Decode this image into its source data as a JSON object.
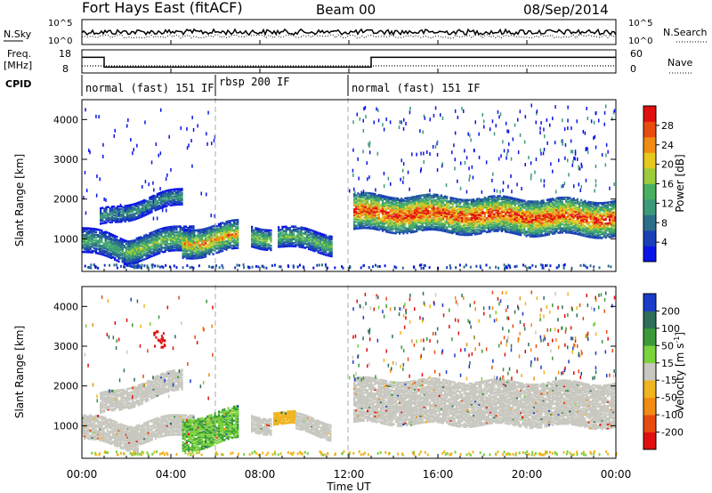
{
  "header": {
    "station": "Fort Hays East (fitACF)",
    "beam": "Beam 00",
    "date": "08/Sep/2014"
  },
  "top_panels": {
    "nsky_label": "N.Sky",
    "nsky_ticks": [
      "10^5",
      "10^0"
    ],
    "nsearch_label": "N.Search",
    "nsearch_ticks": [
      "10^5",
      "10^0"
    ],
    "freq_label_1": "Freq.",
    "freq_label_2": "[MHz]",
    "freq_ticks": [
      "18",
      "8"
    ],
    "nave_label": "Nave",
    "nave_ticks": [
      "60",
      "0"
    ],
    "cpid_label": "CPID",
    "cpid_segments": [
      {
        "label": "normal (fast) 151 IF",
        "start_hr": 0,
        "end_hr": 6
      },
      {
        "label": "rbsp 200 IF",
        "start_hr": 6,
        "end_hr": 12
      },
      {
        "label": "normal (fast) 151 IF",
        "start_hr": 12,
        "end_hr": 24
      }
    ],
    "freq_steps": [
      {
        "start_hr": 0,
        "end_hr": 1.0,
        "mhz": 16
      },
      {
        "start_hr": 1.0,
        "end_hr": 13.0,
        "mhz": 11
      },
      {
        "start_hr": 13.0,
        "end_hr": 24,
        "mhz": 16
      }
    ]
  },
  "power_panel": {
    "ylabel": "Slant Range [km]",
    "yticks": [
      "4000",
      "3000",
      "2000",
      "1000"
    ],
    "ylim": [
      180,
      4500
    ],
    "colorbar_label": "Power [dB]",
    "colorbar_ticks": [
      "28",
      "24",
      "20",
      "16",
      "12",
      "8",
      "4"
    ],
    "colors": [
      "#0a14e6",
      "#1a40b8",
      "#2b6e8a",
      "#3c9a7a",
      "#48b060",
      "#9ccc3c",
      "#e6c81e",
      "#f08c14",
      "#e84a10",
      "#e01010"
    ]
  },
  "velocity_panel": {
    "ylabel": "Slant Range [km]",
    "yticks": [
      "4000",
      "3000",
      "2000",
      "1000"
    ],
    "ylim": [
      180,
      4500
    ],
    "colorbar_label": "Velocity [m s^-1]",
    "colorbar_ticks": [
      "200",
      "100",
      "50",
      "15",
      "-15",
      "-50",
      "-100",
      "-200"
    ],
    "colors": [
      "#1a3cc8",
      "#2e6e5a",
      "#3a9a3a",
      "#7ad23c",
      "#c8c8c0",
      "#f0b41e",
      "#f08c14",
      "#e84a10",
      "#e01010"
    ]
  },
  "xaxis": {
    "xlabel": "Time UT",
    "ticks": [
      "00:00",
      "04:00",
      "08:00",
      "12:00",
      "16:00",
      "20:00",
      "00:00"
    ]
  },
  "chart_data": [
    {
      "type": "heatmap",
      "title": "Power [dB]",
      "xlabel": "Time UT",
      "ylabel": "Slant Range [km]",
      "xlim_hr": [
        0,
        24
      ],
      "ylim": [
        180,
        4500
      ],
      "value_range": [
        0,
        30
      ],
      "bands": [
        {
          "t0": 0.0,
          "t1": 2.5,
          "r0_start": 1000,
          "r0_end": 650,
          "width": 300,
          "peak_db": 14
        },
        {
          "t0": 0.8,
          "t1": 4.5,
          "r0_start": 1550,
          "r0_end": 2100,
          "width": 200,
          "peak_db": 12
        },
        {
          "t0": 2.0,
          "t1": 5.0,
          "r0_start": 750,
          "r0_end": 1100,
          "width": 300,
          "peak_db": 18
        },
        {
          "t0": 4.5,
          "t1": 7.0,
          "r0_start": 900,
          "r0_end": 1100,
          "width": 350,
          "peak_db": 24
        },
        {
          "t0": 7.6,
          "t1": 8.5,
          "r0_start": 1100,
          "r0_end": 1050,
          "width": 250,
          "peak_db": 18
        },
        {
          "t0": 8.8,
          "t1": 11.2,
          "r0_start": 1100,
          "r0_end": 900,
          "width": 250,
          "peak_db": 16
        },
        {
          "t0": 12.2,
          "t1": 24.0,
          "r0_start": 1700,
          "r0_end": 1550,
          "width": 450,
          "peak_db": 30
        }
      ]
    },
    {
      "type": "heatmap",
      "title": "Velocity [m s^-1]",
      "xlabel": "Time UT",
      "ylabel": "Slant Range [km]",
      "xlim_hr": [
        0,
        24
      ],
      "ylim": [
        180,
        4500
      ],
      "value_range": [
        -200,
        200
      ],
      "bands": [
        {
          "t0": 0.0,
          "t1": 2.5,
          "r0_start": 1000,
          "r0_end": 700,
          "width": 300,
          "vel": 0
        },
        {
          "t0": 0.8,
          "t1": 4.5,
          "r0_start": 1550,
          "r0_end": 2200,
          "width": 250,
          "vel": 0
        },
        {
          "t0": 2.0,
          "t1": 5.0,
          "r0_start": 800,
          "r0_end": 1100,
          "width": 250,
          "vel": 0
        },
        {
          "t0": 4.5,
          "t1": 7.0,
          "r0_start": 800,
          "r0_end": 1100,
          "width": 400,
          "vel": 30
        },
        {
          "t0": 7.6,
          "t1": 8.5,
          "r0_start": 1100,
          "r0_end": 1050,
          "width": 200,
          "vel": 0
        },
        {
          "t0": 8.6,
          "t1": 9.6,
          "r0_start": 1250,
          "r0_end": 1200,
          "width": 150,
          "vel": -30
        },
        {
          "t0": 9.6,
          "t1": 11.2,
          "r0_start": 1100,
          "r0_end": 900,
          "width": 200,
          "vel": 0
        },
        {
          "t0": 12.2,
          "t1": 24.0,
          "r0_start": 1650,
          "r0_end": 1550,
          "width": 550,
          "vel": 0
        }
      ]
    }
  ]
}
